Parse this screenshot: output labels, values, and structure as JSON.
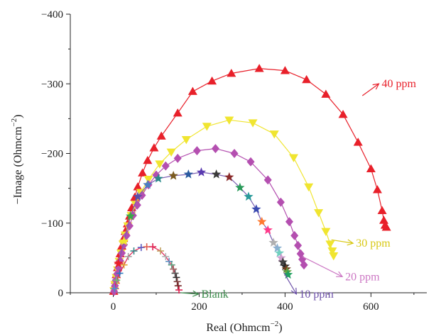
{
  "chart_data": {
    "type": "scatter",
    "title": "",
    "xlabel": "Real (Ohmcm",
    "xlabel_sup": "−2",
    "xlabel_tail": ")",
    "ylabel": "−Image (Ohmcm",
    "ylabel_sup": "−2",
    "ylabel_tail": ")",
    "xlim": [
      -100,
      730
    ],
    "ylim": [
      -400,
      0
    ],
    "x_ticks": [
      0,
      200,
      400,
      600
    ],
    "x_tick_labels": [
      "0",
      "200",
      "400",
      "600"
    ],
    "y_ticks": [
      -400,
      -300,
      -200,
      -100,
      0
    ],
    "y_tick_labels": [
      "−400",
      "−300",
      "−200",
      "−100",
      "0"
    ],
    "grid": false,
    "legend": "callout labels next to each curve",
    "series": [
      {
        "name": "40 ppm",
        "color": "#e8202a",
        "marker": "triangle-up",
        "line": true,
        "points": [
          [
            1,
            -2
          ],
          [
            3,
            -10
          ],
          [
            5,
            -18
          ],
          [
            7,
            -26
          ],
          [
            10,
            -36
          ],
          [
            13,
            -46
          ],
          [
            16,
            -56
          ],
          [
            20,
            -67
          ],
          [
            24,
            -78
          ],
          [
            28,
            -88
          ],
          [
            33,
            -99
          ],
          [
            38,
            -110
          ],
          [
            43,
            -122
          ],
          [
            50,
            -137
          ],
          [
            57,
            -152
          ],
          [
            68,
            -172
          ],
          [
            80,
            -190
          ],
          [
            95,
            -208
          ],
          [
            112,
            -225
          ],
          [
            150,
            -258
          ],
          [
            185,
            -289
          ],
          [
            230,
            -304
          ],
          [
            275,
            -315
          ],
          [
            340,
            -322
          ],
          [
            400,
            -319
          ],
          [
            450,
            -306
          ],
          [
            495,
            -285
          ],
          [
            535,
            -256
          ],
          [
            570,
            -216
          ],
          [
            600,
            -178
          ],
          [
            615,
            -148
          ],
          [
            626,
            -118
          ],
          [
            630,
            -104
          ],
          [
            633,
            -97
          ],
          [
            636,
            -94
          ]
        ]
      },
      {
        "name": "30 ppm",
        "color": "#f0e530",
        "marker": "triangle-down",
        "line": true,
        "points": [
          [
            2,
            -3
          ],
          [
            4,
            -12
          ],
          [
            7,
            -22
          ],
          [
            10,
            -33
          ],
          [
            14,
            -45
          ],
          [
            18,
            -57
          ],
          [
            23,
            -70
          ],
          [
            28,
            -83
          ],
          [
            34,
            -96
          ],
          [
            42,
            -111
          ],
          [
            52,
            -127
          ],
          [
            64,
            -144
          ],
          [
            82,
            -163
          ],
          [
            108,
            -185
          ],
          [
            135,
            -202
          ],
          [
            170,
            -220
          ],
          [
            218,
            -239
          ],
          [
            270,
            -248
          ],
          [
            325,
            -244
          ],
          [
            375,
            -228
          ],
          [
            420,
            -194
          ],
          [
            455,
            -152
          ],
          [
            478,
            -115
          ],
          [
            495,
            -88
          ],
          [
            505,
            -70
          ],
          [
            510,
            -60
          ],
          [
            513,
            -53
          ]
        ]
      },
      {
        "name": "20 ppm",
        "color": "#b44fb0",
        "marker": "diamond",
        "line": true,
        "points": [
          [
            2,
            -2
          ],
          [
            4,
            -10
          ],
          [
            6,
            -18
          ],
          [
            9,
            -27
          ],
          [
            12,
            -36
          ],
          [
            16,
            -46
          ],
          [
            20,
            -57
          ],
          [
            25,
            -69
          ],
          [
            31,
            -82
          ],
          [
            38,
            -96
          ],
          [
            46,
            -111
          ],
          [
            56,
            -126
          ],
          [
            67,
            -140
          ],
          [
            82,
            -155
          ],
          [
            100,
            -169
          ],
          [
            122,
            -182
          ],
          [
            150,
            -193
          ],
          [
            195,
            -204
          ],
          [
            238,
            -207
          ],
          [
            282,
            -200
          ],
          [
            320,
            -188
          ],
          [
            360,
            -162
          ],
          [
            390,
            -130
          ],
          [
            410,
            -102
          ],
          [
            422,
            -82
          ],
          [
            430,
            -68
          ],
          [
            436,
            -56
          ],
          [
            440,
            -48
          ],
          [
            444,
            -40
          ]
        ]
      },
      {
        "name": "10 ppm",
        "color": "#7b5fb2",
        "marker": "star",
        "line": true,
        "points": [
          [
            12,
            -42
          ],
          [
            25,
            -74
          ],
          [
            40,
            -110
          ],
          [
            57,
            -138
          ],
          [
            80,
            -155
          ],
          [
            105,
            -164
          ],
          [
            140,
            -168
          ],
          [
            175,
            -170
          ],
          [
            205,
            -173
          ],
          [
            240,
            -170
          ],
          [
            270,
            -166
          ],
          [
            295,
            -151
          ],
          [
            315,
            -138
          ],
          [
            333,
            -120
          ],
          [
            346,
            -102
          ],
          [
            360,
            -90
          ],
          [
            373,
            -72
          ],
          [
            382,
            -64
          ],
          [
            387,
            -57
          ],
          [
            391,
            -50
          ],
          [
            395,
            -44
          ],
          [
            400,
            -38
          ],
          [
            403,
            -34
          ],
          [
            405,
            -30
          ],
          [
            407,
            -26
          ]
        ],
        "marker_colors": [
          "#e8202a",
          "#f0e530",
          "#3aa84a",
          "#5a4fa8",
          "#4a7fc0",
          "#2a8a8a",
          "#7a5a20",
          "#2a5aa0",
          "#5a3ab0",
          "#3a3a3a",
          "#8a2a2a",
          "#2a9a5a",
          "#2a9a9a",
          "#3a4ab0",
          "#ff7a30",
          "#ff3a8a",
          "#b0b0b0",
          "#8ab0d0",
          "#70d0c0",
          "#d0a0d0",
          "#404040",
          "#2a2a2a",
          "#704020",
          "#60a040",
          "#20a060"
        ]
      },
      {
        "name": "Blank",
        "color": "#e02050",
        "marker": "plus",
        "line": true,
        "points": [
          [
            3,
            -6
          ],
          [
            8,
            -18
          ],
          [
            15,
            -28
          ],
          [
            25,
            -40
          ],
          [
            35,
            -52
          ],
          [
            48,
            -60
          ],
          [
            65,
            -65
          ],
          [
            78,
            -66
          ],
          [
            92,
            -66
          ],
          [
            110,
            -60
          ],
          [
            122,
            -52
          ],
          [
            130,
            -45
          ],
          [
            136,
            -40
          ],
          [
            140,
            -34
          ],
          [
            144,
            -28
          ],
          [
            147,
            -22
          ],
          [
            149,
            -16
          ],
          [
            151,
            -10
          ],
          [
            153,
            -4
          ]
        ],
        "marker_colors": [
          "#4a90d0",
          "#70c070",
          "#2a7ac0",
          "#e0a030",
          "#a0a0a0",
          "#3a8a8a",
          "#5a5ac0",
          "#e06050",
          "#e02050",
          "#c0a060",
          "#b0b0b0",
          "#6090c0",
          "#60a080",
          "#a06060",
          "#505050",
          "#303030",
          "#804040",
          "#702020",
          "#e02050"
        ]
      }
    ],
    "annotations": [
      {
        "text": "40 ppm",
        "color": "#e8202a",
        "arrow_to": [
          580,
          -283
        ],
        "label_at": [
          625,
          -295
        ]
      },
      {
        "text": "30 ppm",
        "color": "#d8c814",
        "arrow_to": [
          508,
          -76
        ],
        "label_at": [
          565,
          -66
        ]
      },
      {
        "text": "20 ppm",
        "color": "#cc77c4",
        "arrow_to": [
          440,
          -52
        ],
        "label_at": [
          540,
          -18
        ]
      },
      {
        "text": "10 ppm",
        "color": "#6b4fa8",
        "arrow_to": [
          398,
          -28
        ],
        "label_at": [
          433,
          7
        ]
      },
      {
        "text": "Blank",
        "color": "#3a8a4a",
        "arrow_to": [
          158,
          0
        ],
        "label_at": [
          205,
          7
        ]
      }
    ]
  }
}
